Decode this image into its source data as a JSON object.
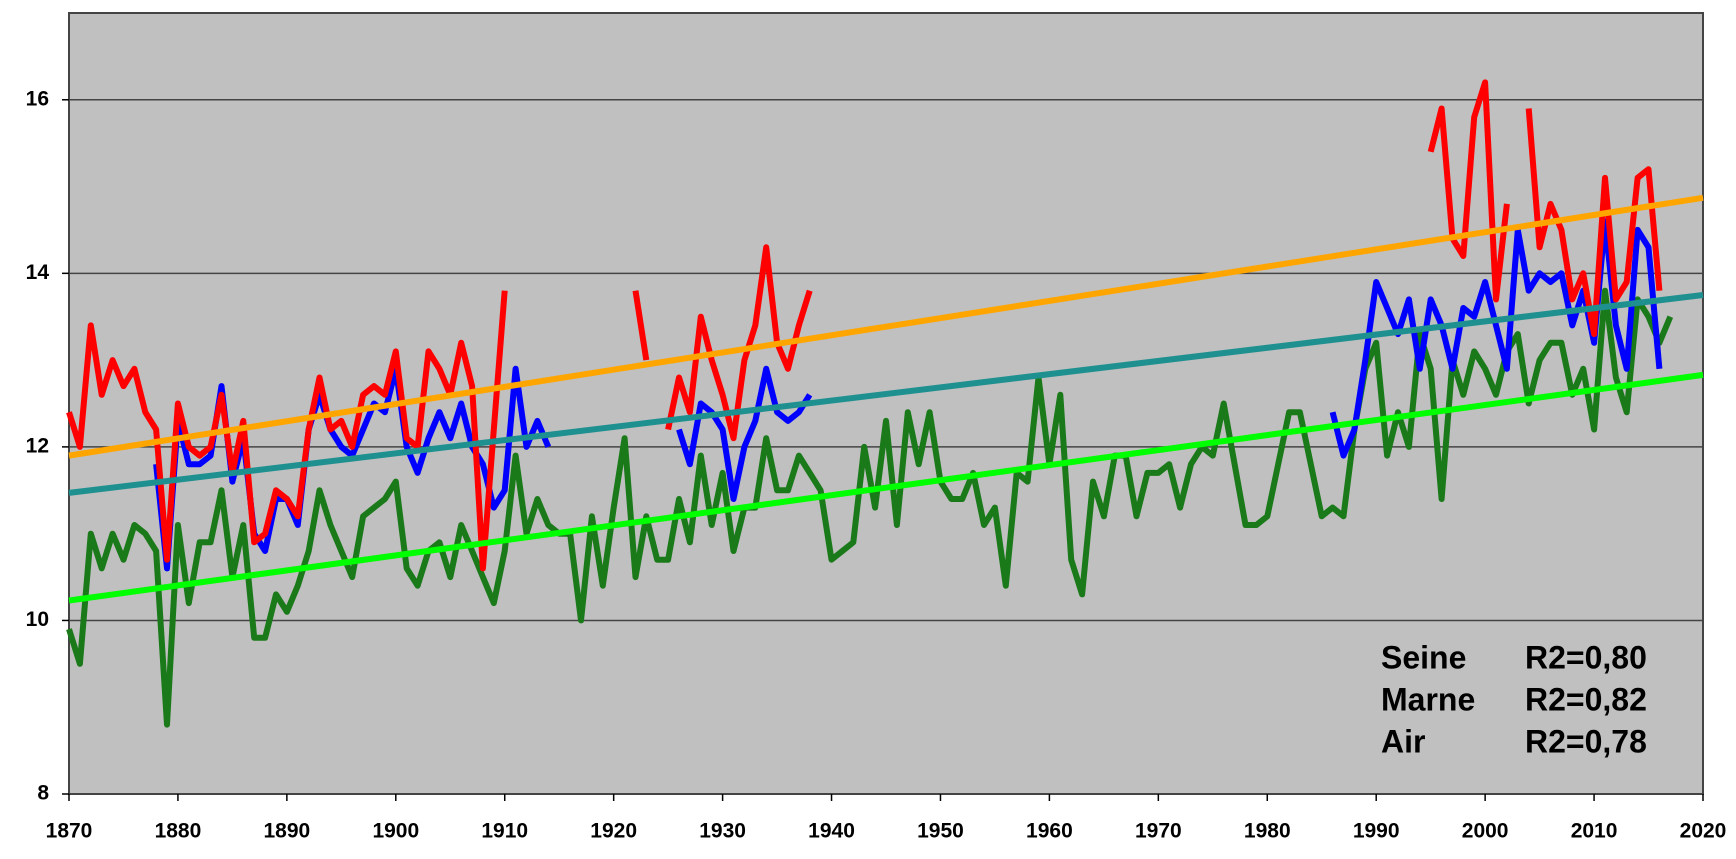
{
  "chart_data": {
    "type": "line",
    "x": [
      1870,
      1871,
      1872,
      1873,
      1874,
      1875,
      1876,
      1877,
      1878,
      1879,
      1880,
      1881,
      1882,
      1883,
      1884,
      1885,
      1886,
      1887,
      1888,
      1889,
      1890,
      1891,
      1892,
      1893,
      1894,
      1895,
      1896,
      1897,
      1898,
      1899,
      1900,
      1901,
      1902,
      1903,
      1904,
      1905,
      1906,
      1907,
      1908,
      1909,
      1910,
      1911,
      1912,
      1913,
      1914,
      1915,
      1916,
      1917,
      1918,
      1919,
      1920,
      1921,
      1922,
      1923,
      1924,
      1925,
      1926,
      1927,
      1928,
      1929,
      1930,
      1931,
      1932,
      1933,
      1934,
      1935,
      1936,
      1937,
      1938,
      1939,
      1940,
      1941,
      1942,
      1943,
      1944,
      1945,
      1946,
      1947,
      1948,
      1949,
      1950,
      1951,
      1952,
      1953,
      1954,
      1955,
      1956,
      1957,
      1958,
      1959,
      1960,
      1961,
      1962,
      1963,
      1964,
      1965,
      1966,
      1967,
      1968,
      1969,
      1970,
      1971,
      1972,
      1973,
      1974,
      1975,
      1976,
      1977,
      1978,
      1979,
      1980,
      1981,
      1982,
      1983,
      1984,
      1985,
      1986,
      1987,
      1988,
      1989,
      1990,
      1991,
      1992,
      1993,
      1994,
      1995,
      1996,
      1997,
      1998,
      1999,
      2000,
      2001,
      2002,
      2003,
      2004,
      2005,
      2006,
      2007,
      2008,
      2009,
      2010,
      2011,
      2012,
      2013,
      2014,
      2015,
      2016,
      2017
    ],
    "series": [
      {
        "name": "Air",
        "label": "R2=0,78",
        "color": "#1a7a1a",
        "values": [
          9.9,
          9.5,
          11.0,
          10.6,
          11.0,
          10.7,
          11.1,
          11.0,
          10.8,
          8.8,
          11.1,
          10.2,
          10.9,
          10.9,
          11.5,
          10.5,
          11.1,
          9.8,
          9.8,
          10.3,
          10.1,
          10.4,
          10.8,
          11.5,
          11.1,
          10.8,
          10.5,
          11.2,
          11.3,
          11.4,
          11.6,
          10.6,
          10.4,
          10.8,
          10.9,
          10.5,
          11.1,
          10.8,
          10.5,
          10.2,
          10.8,
          11.9,
          11.0,
          11.4,
          11.1,
          11.0,
          11.0,
          10.0,
          11.2,
          10.4,
          11.3,
          12.1,
          10.5,
          11.2,
          10.7,
          10.7,
          11.4,
          10.9,
          11.9,
          11.1,
          11.7,
          10.8,
          11.3,
          11.3,
          12.1,
          11.5,
          11.5,
          11.9,
          11.7,
          11.5,
          10.7,
          10.8,
          10.9,
          12.0,
          11.3,
          12.3,
          11.1,
          12.4,
          11.8,
          12.4,
          11.6,
          11.4,
          11.4,
          11.7,
          11.1,
          11.3,
          10.4,
          11.7,
          11.6,
          12.8,
          11.8,
          12.6,
          10.7,
          10.3,
          11.6,
          11.2,
          11.9,
          11.9,
          11.2,
          11.7,
          11.7,
          11.8,
          11.3,
          11.8,
          12.0,
          11.9,
          12.5,
          11.8,
          11.1,
          11.1,
          11.2,
          11.8,
          12.4,
          12.4,
          11.8,
          11.2,
          11.3,
          11.2,
          12.2,
          12.9,
          13.2,
          11.9,
          12.4,
          12.0,
          13.3,
          12.9,
          11.4,
          13.0,
          12.6,
          13.1,
          12.9,
          12.6,
          13.1,
          13.3,
          12.5,
          13.0,
          13.2,
          13.2,
          12.6,
          12.9,
          12.2,
          13.8,
          12.8,
          12.4,
          13.7,
          13.5,
          13.2,
          13.5
        ]
      },
      {
        "name": "Marne",
        "label": "R2=0,82",
        "color": "#0000ff",
        "values": [
          null,
          null,
          null,
          null,
          null,
          null,
          null,
          null,
          11.8,
          10.6,
          12.3,
          11.8,
          11.8,
          11.9,
          12.7,
          11.6,
          12.1,
          11.0,
          10.8,
          11.4,
          11.4,
          11.1,
          12.2,
          12.6,
          12.2,
          12.0,
          11.9,
          12.2,
          12.5,
          12.4,
          12.9,
          12.0,
          11.7,
          12.1,
          12.4,
          12.1,
          12.5,
          12.0,
          11.8,
          11.3,
          11.5,
          12.9,
          12.0,
          12.3,
          12.0,
          null,
          null,
          null,
          null,
          null,
          null,
          null,
          null,
          null,
          null,
          null,
          12.2,
          11.8,
          12.5,
          12.4,
          12.2,
          11.4,
          12.0,
          12.3,
          12.9,
          12.4,
          12.3,
          12.4,
          12.6,
          null,
          null,
          null,
          null,
          null,
          null,
          null,
          null,
          null,
          null,
          null,
          null,
          null,
          null,
          null,
          null,
          null,
          null,
          null,
          null,
          null,
          null,
          null,
          null,
          null,
          null,
          null,
          null,
          null,
          null,
          null,
          null,
          null,
          null,
          null,
          null,
          null,
          null,
          null,
          null,
          null,
          null,
          null,
          null,
          null,
          null,
          null,
          12.4,
          11.9,
          12.2,
          13.0,
          13.9,
          13.6,
          13.3,
          13.7,
          12.9,
          13.7,
          13.4,
          12.9,
          13.6,
          13.5,
          13.9,
          13.4,
          12.9,
          14.5,
          13.8,
          14.0,
          13.9,
          14.0,
          13.4,
          13.8,
          13.2,
          14.6,
          13.4,
          12.9,
          14.5,
          14.3,
          12.9,
          null
        ]
      },
      {
        "name": "Seine",
        "label": "R2=0,80",
        "color": "#ff0000",
        "values": [
          12.4,
          12.0,
          13.4,
          12.6,
          13.0,
          12.7,
          12.9,
          12.4,
          12.2,
          10.7,
          12.5,
          12.0,
          11.9,
          12.0,
          12.6,
          11.7,
          12.3,
          10.9,
          11.0,
          11.5,
          11.4,
          11.2,
          12.2,
          12.8,
          12.2,
          12.3,
          12.0,
          12.6,
          12.7,
          12.6,
          13.1,
          12.1,
          12.0,
          13.1,
          12.9,
          12.6,
          13.2,
          12.7,
          10.6,
          12.2,
          13.8,
          null,
          null,
          null,
          null,
          null,
          null,
          null,
          null,
          null,
          null,
          null,
          13.8,
          13.0,
          null,
          12.2,
          12.8,
          12.4,
          13.5,
          13.0,
          12.6,
          12.1,
          13.0,
          13.4,
          14.3,
          13.2,
          12.9,
          13.4,
          13.8,
          null,
          null,
          null,
          null,
          null,
          null,
          null,
          null,
          null,
          null,
          null,
          null,
          null,
          null,
          null,
          null,
          null,
          null,
          null,
          null,
          null,
          null,
          null,
          null,
          null,
          null,
          null,
          null,
          null,
          null,
          null,
          null,
          null,
          null,
          null,
          null,
          null,
          null,
          null,
          null,
          null,
          null,
          null,
          null,
          null,
          null,
          null,
          null,
          null,
          null,
          null,
          null,
          null,
          null,
          null,
          null,
          15.4,
          15.9,
          14.4,
          14.2,
          15.8,
          16.2,
          13.7,
          14.8,
          null,
          15.9,
          14.3,
          14.8,
          14.5,
          13.7,
          14.0,
          13.3,
          15.1,
          13.7,
          13.9,
          15.1,
          15.2,
          13.8,
          null
        ]
      }
    ],
    "trend_lines": [
      {
        "color": "#00ff00",
        "x": [
          1870,
          2020
        ],
        "values": [
          10.23,
          12.83
        ]
      },
      {
        "color": "#1f9090",
        "x": [
          1870,
          2020
        ],
        "values": [
          11.47,
          13.75
        ]
      },
      {
        "color": "#ffa500",
        "x": [
          1870,
          2020
        ],
        "values": [
          11.9,
          14.87
        ]
      }
    ],
    "xlim": [
      1870,
      2020
    ],
    "xticks": [
      1870,
      1880,
      1890,
      1900,
      1910,
      1920,
      1930,
      1940,
      1950,
      1960,
      1970,
      1980,
      1990,
      2000,
      2010,
      2020
    ],
    "ylim": [
      8,
      17
    ],
    "yticks": [
      8,
      10,
      12,
      14,
      16
    ],
    "grid": true,
    "legend": "lower right"
  }
}
